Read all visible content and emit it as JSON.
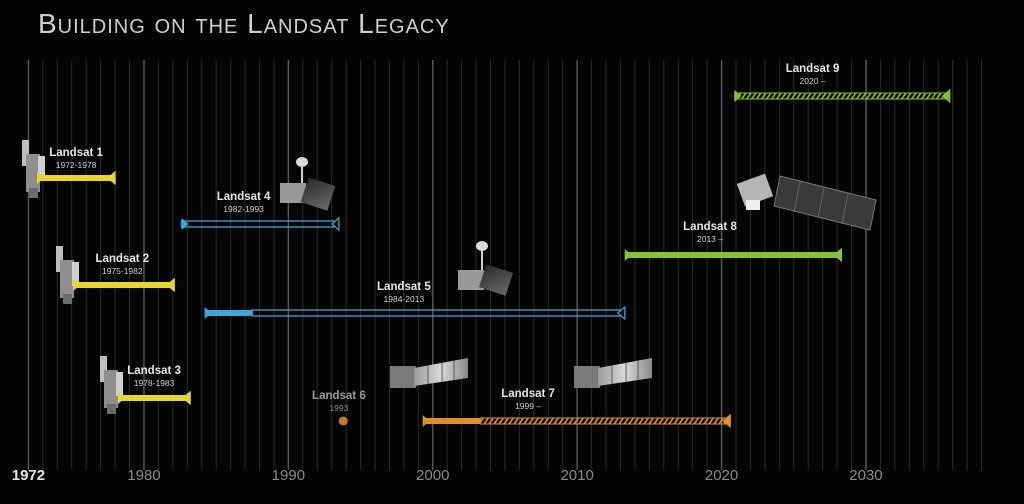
{
  "chart_data": {
    "type": "timeline",
    "title": "Building on the Landsat Legacy",
    "xlim": [
      1971,
      2039
    ],
    "x_ticks": [
      1972,
      1980,
      1990,
      2000,
      2010,
      2020,
      2030
    ],
    "grid": "vertical lines every year",
    "missions": [
      {
        "name": "Landsat 1",
        "dates": "1972-1978",
        "start": 1972.6,
        "end": 1978.0,
        "color": "#e7d923",
        "style": "solid",
        "label_x": 1975.3
      },
      {
        "name": "Landsat 2",
        "dates": "1975-1982",
        "start": 1975.1,
        "end": 1982.1,
        "color": "#e7d923",
        "style": "solid",
        "label_x": 1978.5
      },
      {
        "name": "Landsat 3",
        "dates": "1978-1983",
        "start": 1978.2,
        "end": 1983.2,
        "color": "#e7d923",
        "style": "solid",
        "label_x": 1980.7
      },
      {
        "name": "Landsat 4",
        "dates": "1982-1993",
        "start": 1982.6,
        "end": 1993.5,
        "color": "#3aa6dc",
        "style": "hollow",
        "label_x": 1986.9
      },
      {
        "name": "Landsat 5",
        "dates": "1984-2013",
        "start": 1984.2,
        "end": 2013.3,
        "color": "#3aa6dc",
        "style": "solid-then-hollow",
        "label_x": 1998.0
      },
      {
        "name": "Landsat 6",
        "dates": "1993",
        "start": 1993.8,
        "end": 1993.8,
        "color": "#c97a1c",
        "style": "point",
        "label_x": 1993.5
      },
      {
        "name": "Landsat 7",
        "dates": "1999 –",
        "start": 1999.3,
        "end": 2020.6,
        "color": "#e0901f",
        "style": "solid-then-hatched",
        "label_x": 2006.6
      },
      {
        "name": "Landsat 8",
        "dates": "2013 –",
        "start": 2013.3,
        "end": 2028.3,
        "color": "#86c232",
        "style": "solid",
        "label_x": 2019.2
      },
      {
        "name": "Landsat 9",
        "dates": "2020 –",
        "start": 2020.9,
        "end": 2035.8,
        "color": "#7ec12a",
        "style": "hatched",
        "label_x": 2026.3
      }
    ]
  }
}
